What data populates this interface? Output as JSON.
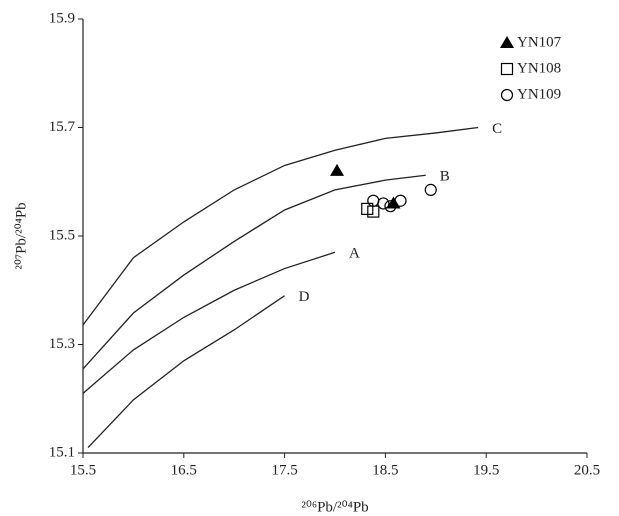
{
  "chart_data": {
    "type": "scatter",
    "x_label": "²⁰⁶Pb/²⁰⁴Pb",
    "y_label": "²⁰⁷Pb/²⁰⁴Pb",
    "xlim": [
      15.5,
      20.5
    ],
    "xticks": [
      15.5,
      16.5,
      17.5,
      18.5,
      19.5,
      20.5
    ],
    "ylim": [
      15.1,
      15.9
    ],
    "yticks": [
      15.1,
      15.3,
      15.5,
      15.7,
      15.9
    ],
    "legend": "upper right",
    "curves": [
      {
        "name": "C",
        "color": "#222222",
        "x": [
          15.5,
          16.0,
          16.5,
          17.0,
          17.5,
          18.0,
          18.5,
          19.0,
          19.42
        ],
        "y": [
          15.336,
          15.46,
          15.526,
          15.585,
          15.63,
          15.658,
          15.68,
          15.69,
          15.7
        ]
      },
      {
        "name": "B",
        "color": "#222222",
        "x": [
          15.5,
          16.0,
          16.5,
          17.0,
          17.5,
          18.0,
          18.5,
          18.9
        ],
        "y": [
          15.255,
          15.358,
          15.428,
          15.49,
          15.548,
          15.585,
          15.603,
          15.612
        ]
      },
      {
        "name": "A",
        "color": "#222222",
        "x": [
          15.5,
          16.0,
          16.5,
          17.0,
          17.5,
          18.0
        ],
        "y": [
          15.21,
          15.29,
          15.35,
          15.4,
          15.44,
          15.47
        ]
      },
      {
        "name": "D",
        "color": "#222222",
        "x": [
          15.55,
          16.0,
          16.5,
          17.0,
          17.5
        ],
        "y": [
          15.11,
          15.198,
          15.27,
          15.327,
          15.39
        ]
      }
    ],
    "series": [
      {
        "name": "YN107",
        "marker": "triangle",
        "color": "#000000",
        "x": [
          18.02,
          18.58
        ],
        "values": [
          15.62,
          15.56
        ]
      },
      {
        "name": "YN108",
        "marker": "square",
        "color": "#000000",
        "x": [
          18.32,
          18.38
        ],
        "values": [
          15.55,
          15.545
        ]
      },
      {
        "name": "YN109",
        "marker": "circle",
        "color": "#000000",
        "x": [
          18.38,
          18.48,
          18.55,
          18.65,
          18.95
        ],
        "values": [
          15.565,
          15.56,
          15.555,
          15.565,
          15.585
        ]
      }
    ]
  }
}
